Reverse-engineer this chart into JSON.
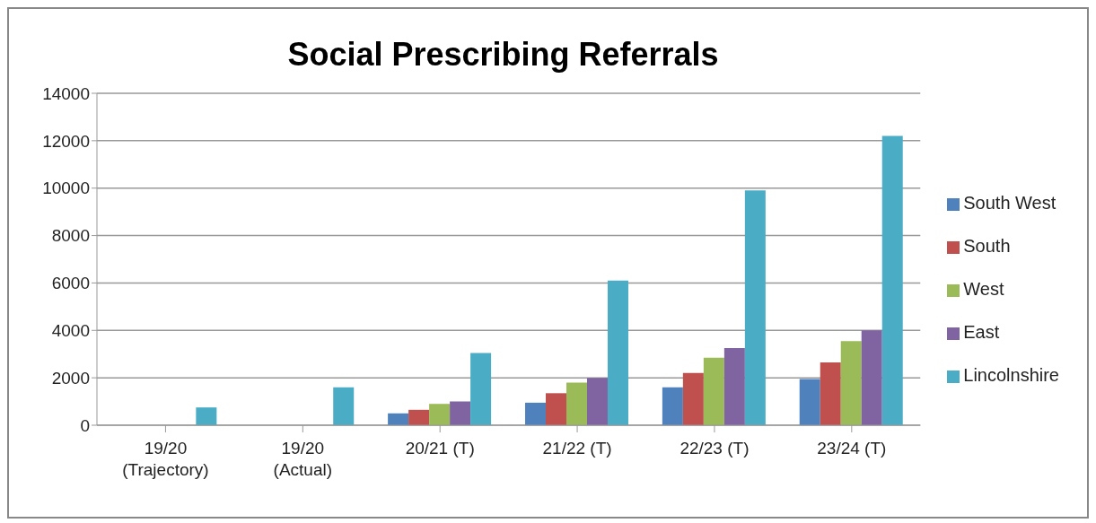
{
  "chart_data": {
    "type": "bar",
    "title": "Social Prescribing Referrals",
    "categories": [
      "19/20\n(Trajectory)",
      "19/20\n(Actual)",
      "20/21 (T)",
      "21/22 (T)",
      "22/23 (T)",
      "23/24 (T)"
    ],
    "series": [
      {
        "name": "South West",
        "color": "#4f81bd",
        "values": [
          null,
          null,
          500,
          950,
          1600,
          1950
        ]
      },
      {
        "name": "South",
        "color": "#c0504d",
        "values": [
          null,
          null,
          650,
          1350,
          2200,
          2650
        ]
      },
      {
        "name": "West",
        "color": "#9bbb59",
        "values": [
          null,
          null,
          900,
          1800,
          2850,
          3550
        ]
      },
      {
        "name": "East",
        "color": "#8064a2",
        "values": [
          null,
          null,
          1000,
          2000,
          3250,
          4000
        ]
      },
      {
        "name": "Lincolnshire",
        "color": "#4bacc6",
        "values": [
          750,
          1600,
          3050,
          6100,
          9900,
          12200
        ]
      }
    ],
    "ylim": [
      0,
      14000
    ],
    "yticks": [
      0,
      2000,
      4000,
      6000,
      8000,
      10000,
      12000,
      14000
    ],
    "grid": "y",
    "legend": "right"
  }
}
